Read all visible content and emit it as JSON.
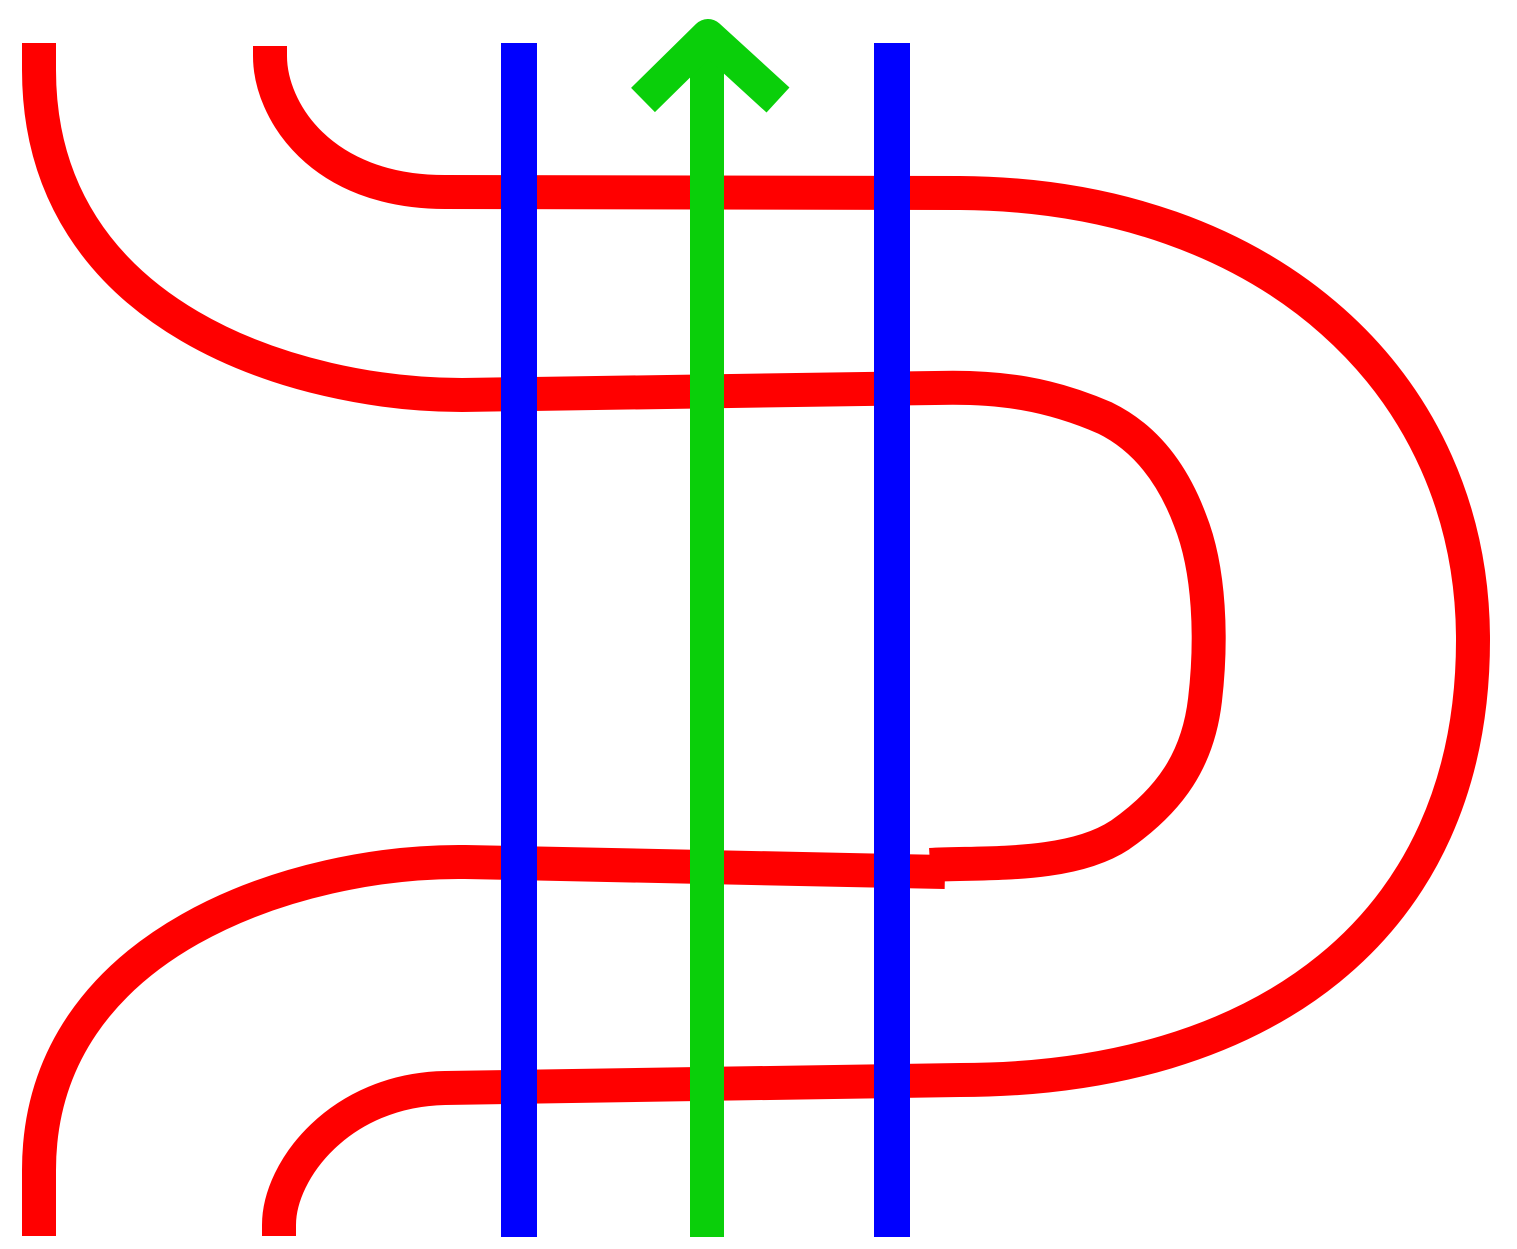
{
  "diagram": {
    "background": "#ffffff",
    "colors": {
      "red_strand": "#ff0000",
      "blue_strand": "#0000ff",
      "green_arrow": "#0acf0a"
    },
    "elements": {
      "red_strands": [
        {
          "name": "red-strand-top-left",
          "role": "curve"
        },
        {
          "name": "red-strand-top-inner",
          "role": "curve"
        },
        {
          "name": "red-strand-middle-loop",
          "role": "curve"
        },
        {
          "name": "red-strand-outer-loop",
          "role": "curve"
        }
      ],
      "blue_strands": [
        {
          "name": "blue-strand-left"
        },
        {
          "name": "blue-strand-right"
        }
      ],
      "green_arrow": {
        "name": "green-arrow-up",
        "direction": "up"
      }
    }
  }
}
